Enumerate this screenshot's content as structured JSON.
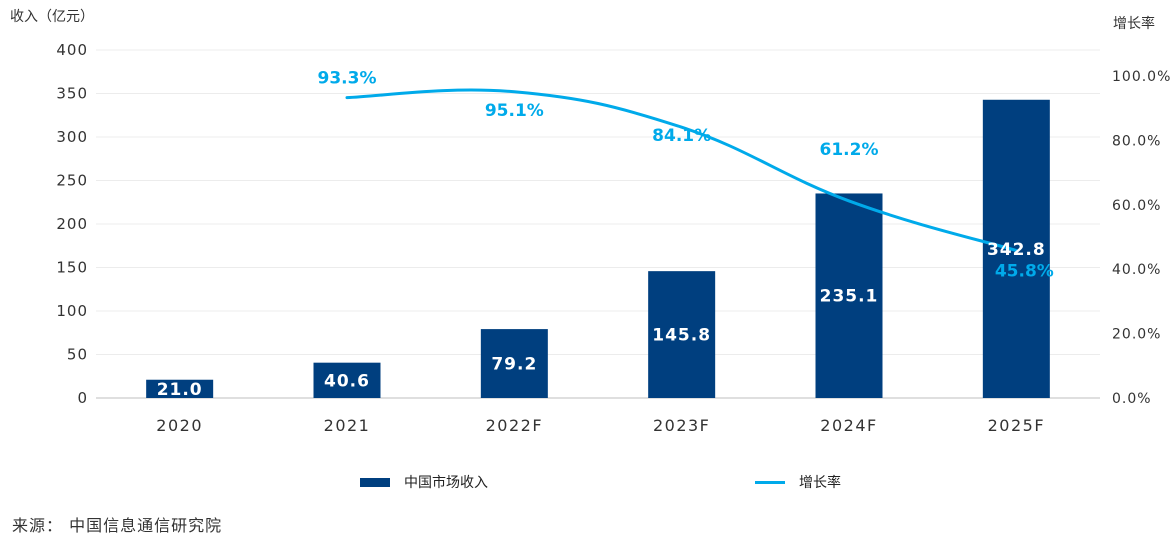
{
  "chart_data": {
    "type": "bar",
    "categories": [
      "2020",
      "2021",
      "2022F",
      "2023F",
      "2024F",
      "2025F"
    ],
    "series": [
      {
        "name": "中国市场收入",
        "type": "bar",
        "axis": "left",
        "color": "#003f7f",
        "values": [
          21.0,
          40.6,
          79.2,
          145.8,
          235.1,
          342.8
        ],
        "labels": [
          "21.0",
          "40.6",
          "79.2",
          "145.8",
          "235.1",
          "342.8"
        ]
      },
      {
        "name": "增长率",
        "type": "line",
        "axis": "right",
        "color": "#00aaea",
        "values": [
          null,
          93.3,
          95.1,
          84.1,
          61.2,
          45.8
        ],
        "labels": [
          "",
          "93.3%",
          "95.1%",
          "84.1%",
          "61.2%",
          "45.8%"
        ]
      }
    ],
    "ylabel": "收入（亿元）",
    "y2label": "增长率",
    "ylim": [
      0,
      400
    ],
    "yticks": [
      "0",
      "50",
      "100",
      "150",
      "200",
      "250",
      "300",
      "350",
      "400"
    ],
    "y2lim": [
      0,
      100
    ],
    "y2ticks": [
      "0.0%",
      "20.0%",
      "40.0%",
      "60.0%",
      "80.0%",
      "100.0%"
    ],
    "grid": true,
    "legend_position": "bottom"
  },
  "source": "来源： 中国信息通信研究院"
}
